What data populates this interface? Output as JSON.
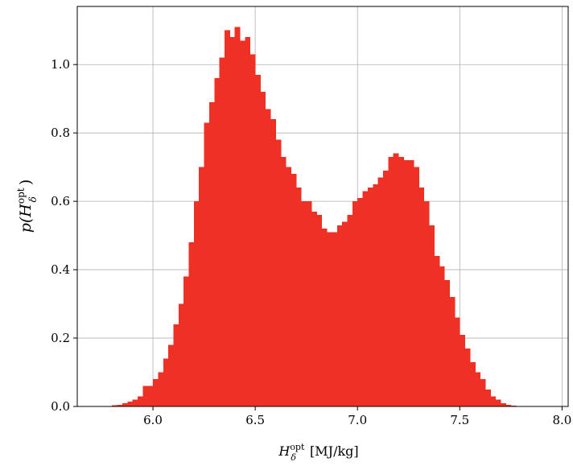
{
  "chart_data": {
    "type": "histogram",
    "xlabel": {
      "symbol": "H",
      "sup": "opt",
      "sub": "δ",
      "unit": "[MJ/kg]"
    },
    "ylabel": {
      "prefix": "p(",
      "symbol": "H",
      "sup": "opt",
      "sub": "δ",
      "suffix": ")"
    },
    "xlim": [
      5.63,
      8.03
    ],
    "ylim": [
      0.0,
      1.17
    ],
    "xticks": [
      6.0,
      6.5,
      7.0,
      7.5,
      8.0
    ],
    "xtick_labels": [
      "6.0",
      "6.5",
      "7.0",
      "7.5",
      "8.0"
    ],
    "yticks": [
      0.0,
      0.2,
      0.4,
      0.6,
      0.8,
      1.0
    ],
    "ytick_labels": [
      "0.0",
      "0.2",
      "0.4",
      "0.6",
      "0.8",
      "1.0"
    ],
    "grid": true,
    "bar_color": "#ee3124",
    "bin_width": 0.025,
    "bin_start": 5.8,
    "values": [
      0.003,
      0.005,
      0.01,
      0.014,
      0.02,
      0.03,
      0.06,
      0.06,
      0.08,
      0.1,
      0.14,
      0.18,
      0.24,
      0.3,
      0.38,
      0.48,
      0.6,
      0.7,
      0.83,
      0.89,
      0.96,
      1.02,
      1.1,
      1.08,
      1.11,
      1.07,
      1.08,
      1.03,
      0.97,
      0.92,
      0.87,
      0.84,
      0.78,
      0.73,
      0.7,
      0.68,
      0.64,
      0.6,
      0.6,
      0.57,
      0.56,
      0.52,
      0.51,
      0.51,
      0.53,
      0.54,
      0.56,
      0.6,
      0.61,
      0.63,
      0.64,
      0.65,
      0.67,
      0.69,
      0.73,
      0.74,
      0.73,
      0.72,
      0.72,
      0.7,
      0.64,
      0.6,
      0.53,
      0.44,
      0.41,
      0.37,
      0.32,
      0.26,
      0.21,
      0.17,
      0.13,
      0.1,
      0.08,
      0.05,
      0.03,
      0.02,
      0.01,
      0.005,
      0.002
    ]
  }
}
